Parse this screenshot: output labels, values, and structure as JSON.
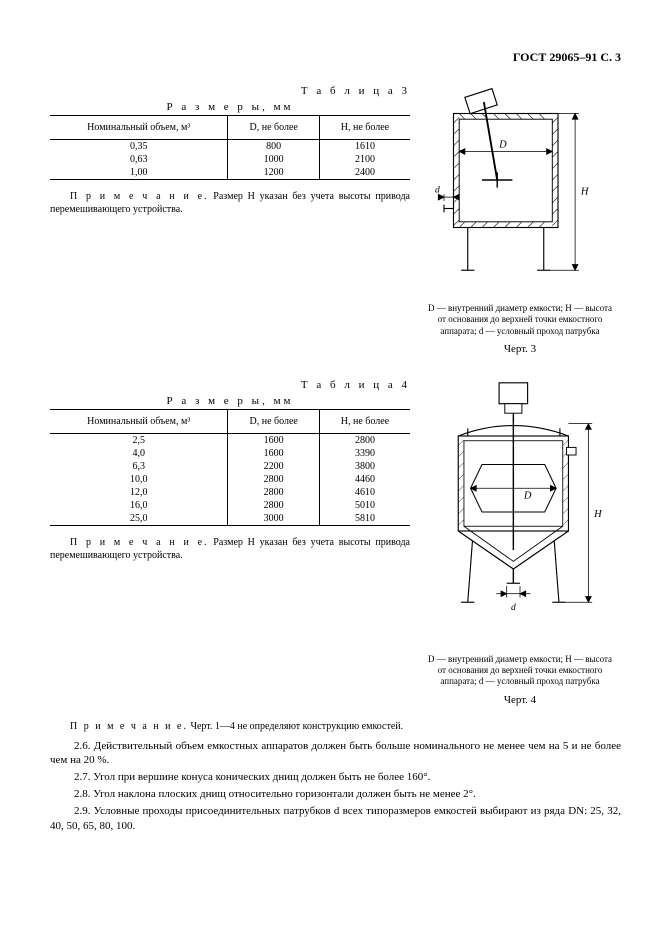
{
  "header": "ГОСТ 29065–91 С. 3",
  "section3": {
    "table_label": "Т а б л и ц а   3",
    "dim_caption": "Р а з м е р ы, мм",
    "columns": [
      "Номинальный объем, м³",
      "D, не более",
      "H, не более"
    ],
    "rows": [
      [
        "0,35",
        "800",
        "1610"
      ],
      [
        "0,63",
        "1000",
        "2100"
      ],
      [
        "1,00",
        "1200",
        "2400"
      ]
    ],
    "note_prefix": "П р и м е ч а н и е.",
    "note": " Размер H указан без учета высоты привода перемешивающего устройства.",
    "fig_desc": "D — внутренний диаметр емкости; H — высота от основания до верхней точки емкостного аппарата; d — условный проход патрубка",
    "fig_label": "Черт. 3",
    "svg": {
      "stroke": "#000000",
      "hatch": "#000000",
      "text": "#000000"
    }
  },
  "section4": {
    "table_label": "Т а б л и ц а   4",
    "dim_caption": "Р а з м е р ы, мм",
    "columns": [
      "Номинальный объем, м³",
      "D, не более",
      "H, не более"
    ],
    "rows": [
      [
        "2,5",
        "1600",
        "2800"
      ],
      [
        "4,0",
        "1600",
        "3390"
      ],
      [
        "6,3",
        "2200",
        "3800"
      ],
      [
        "10,0",
        "2800",
        "4460"
      ],
      [
        "12,0",
        "2800",
        "4610"
      ],
      [
        "16,0",
        "2800",
        "5010"
      ],
      [
        "25,0",
        "3000",
        "5810"
      ]
    ],
    "note_prefix": "П р и м е ч а н и е.",
    "note": " Размер H указан без учета высоты привода перемешивающего устройства.",
    "fig_desc": "D — внутренний диаметр емкости; H — высота от основания до верхней точки емкостного аппарата; d — условный проход патрубка",
    "fig_label": "Черт. 4",
    "svg": {
      "stroke": "#000000",
      "hatch": "#000000",
      "text": "#000000"
    }
  },
  "bottom_note_prefix": "П р и м е ч а н и е.",
  "bottom_note": " Черт. 1—4 не определяют конструкцию емкостей.",
  "paragraphs": [
    "2.6. Действительный объем емкостных аппаратов должен быть больше номинального не менее чем на 5 и не более чем на 20 %.",
    "2.7. Угол при вершине конуса конических днищ должен быть не более 160°.",
    "2.8. Угол наклона плоских днищ относительно горизонтали должен быть не менее 2°.",
    "2.9. Условные проходы присоединительных патрубков d всех типоразмеров емкостей выбирают из ряда DN: 25, 32, 40, 50, 65, 80, 100."
  ]
}
